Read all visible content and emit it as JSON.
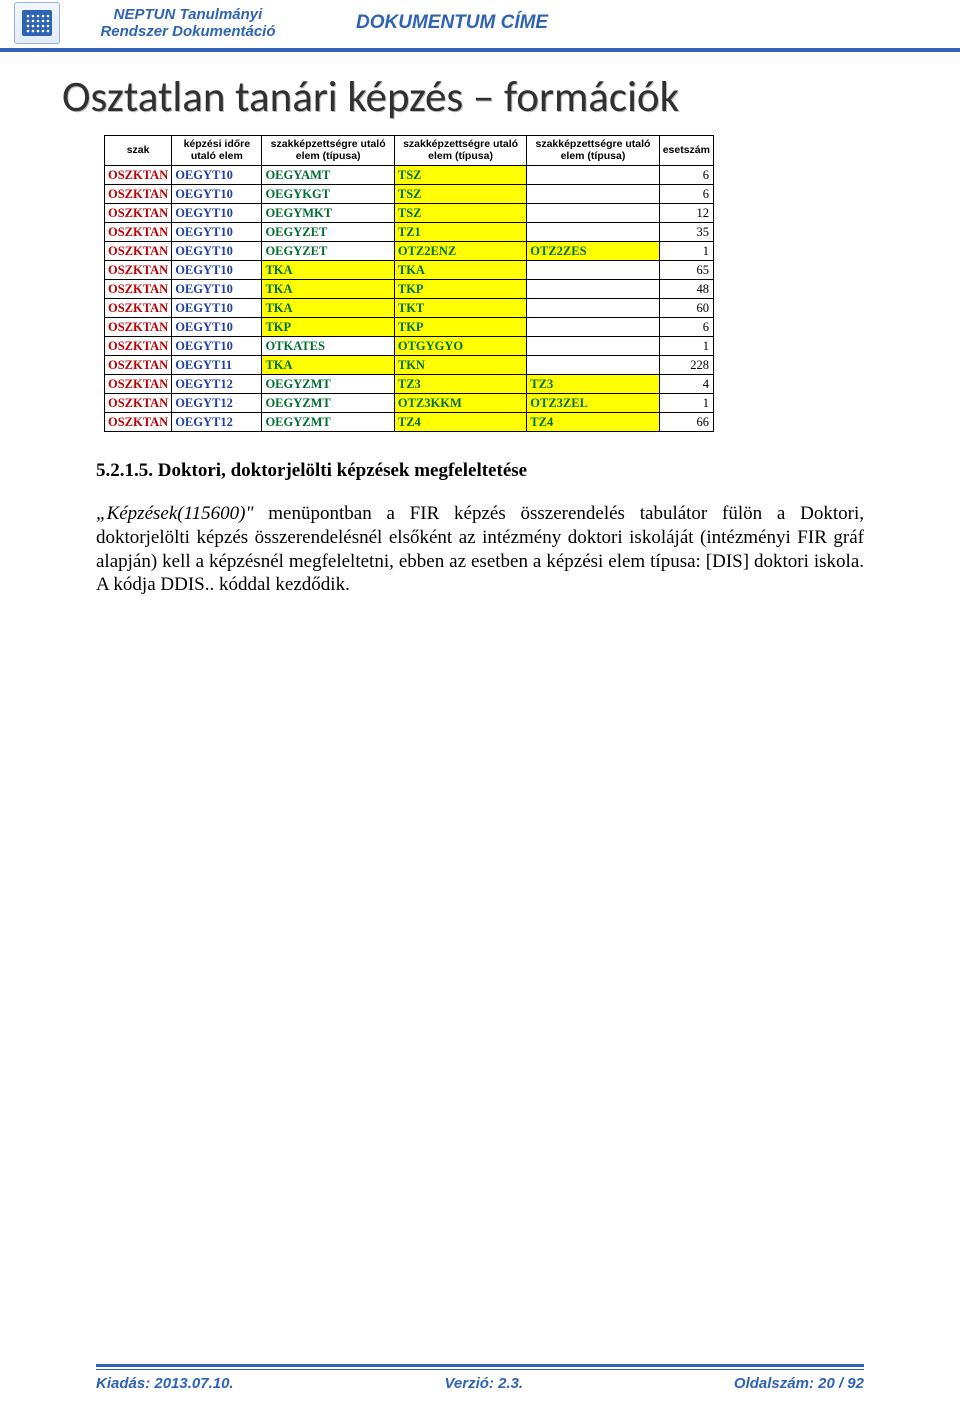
{
  "header": {
    "brand_line1": "NEPTUN Tanulmányi",
    "brand_line2": "Rendszer Dokumentáció",
    "doc_title": "DOKUMENTUM CÍME"
  },
  "slide": {
    "heading": "Osztatlan tanári képzés – formációk",
    "heading_color": "#303030",
    "heading_fontsize": 43
  },
  "table": {
    "header_bg": "#ffffff",
    "highlight_bg": "#ffff00",
    "text_red": "#c00000",
    "text_blue": "#1f3fa3",
    "text_green": "#006e2e",
    "columns": [
      "szak",
      "képzési időre utaló elem",
      "szakképzettségre utaló elem (típusa)",
      "szakképzettségre utaló elem (típusa)",
      "szakképzettségre utaló elem (típusa)",
      "esetszám"
    ],
    "rows": [
      {
        "szak": "OSZKTAN",
        "ido": "OEGYT10",
        "e1": "OEGYAMT",
        "e2": "TSZ",
        "e2_hi": true,
        "e3": "",
        "num": 6
      },
      {
        "szak": "OSZKTAN",
        "ido": "OEGYT10",
        "e1": "OEGYKGT",
        "e2": "TSZ",
        "e2_hi": true,
        "e3": "",
        "num": 6
      },
      {
        "szak": "OSZKTAN",
        "ido": "OEGYT10",
        "e1": "OEGYMKT",
        "e2": "TSZ",
        "e2_hi": true,
        "e3": "",
        "num": 12
      },
      {
        "szak": "OSZKTAN",
        "ido": "OEGYT10",
        "e1": "OEGYZET",
        "e2": "TZ1",
        "e2_hi": true,
        "e3": "",
        "num": 35
      },
      {
        "szak": "OSZKTAN",
        "ido": "OEGYT10",
        "e1": "OEGYZET",
        "e2": "OTZ2ENZ",
        "e2_hi": true,
        "e3": "OTZ2ZES",
        "e3_hi": true,
        "num": 1
      },
      {
        "szak": "OSZKTAN",
        "ido": "OEGYT10",
        "e1": "TKA",
        "e1_hi": true,
        "e2": "TKA",
        "e2_hi": true,
        "e3": "",
        "num": 65
      },
      {
        "szak": "OSZKTAN",
        "ido": "OEGYT10",
        "e1": "TKA",
        "e1_hi": true,
        "e2": "TKP",
        "e2_hi": true,
        "e3": "",
        "num": 48
      },
      {
        "szak": "OSZKTAN",
        "ido": "OEGYT10",
        "e1": "TKA",
        "e1_hi": true,
        "e2": "TKT",
        "e2_hi": true,
        "e3": "",
        "num": 60
      },
      {
        "szak": "OSZKTAN",
        "ido": "OEGYT10",
        "e1": "TKP",
        "e1_hi": true,
        "e2": "TKP",
        "e2_hi": true,
        "e3": "",
        "num": 6
      },
      {
        "szak": "OSZKTAN",
        "ido": "OEGYT10",
        "e1": "OTKATES",
        "e2": "OTGYGYO",
        "e2_hi": true,
        "e3": "",
        "num": 1
      },
      {
        "szak": "OSZKTAN",
        "ido": "OEGYT11",
        "e1": "TKA",
        "e1_hi": true,
        "e2": "TKN",
        "e2_hi": true,
        "e3": "",
        "num": 228
      },
      {
        "szak": "OSZKTAN",
        "ido": "OEGYT12",
        "e1": "OEGYZMT",
        "e2": "TZ3",
        "e2_hi": true,
        "e3": "TZ3",
        "e3_hi": true,
        "num": 4
      },
      {
        "szak": "OSZKTAN",
        "ido": "OEGYT12",
        "e1": "OEGYZMT",
        "e2": "OTZ3KKM",
        "e2_hi": true,
        "e3": "OTZ3ZEL",
        "e3_hi": true,
        "num": 1
      },
      {
        "szak": "OSZKTAN",
        "ido": "OEGYT12",
        "e1": "OEGYZMT",
        "e2": "TZ4",
        "e2_hi": true,
        "e3": "TZ4",
        "e3_hi": true,
        "num": 66
      }
    ]
  },
  "section": {
    "number": "5.2.1.5. Doktori, doktorjelölti képzések megfeleltetése",
    "paragraph": "„Képzések(115600)\" menüpontban a FIR képzés összerendelés tabulátor fülön a Doktori, doktorjelölti képzés összerendelésnél elsőként az intézmény doktori iskoláját (intézményi FIR gráf alapján) kell a képzésnél megfeleltetni, ebben az esetben a képzési elem típusa: [DIS] doktori iskola. A kódja DDIS.. kóddal kezdődik.",
    "menu_italic": "„Képzések(115600)\""
  },
  "footer": {
    "kiadas_label": "Kiadás:",
    "kiadas_value": "2013.07.10.",
    "verzio_label": "Verzió:",
    "verzio_value": "2.3.",
    "oldal_label": "Oldalszám:",
    "oldal_value": "20 / 92",
    "brand_color": "#2f63b5"
  }
}
